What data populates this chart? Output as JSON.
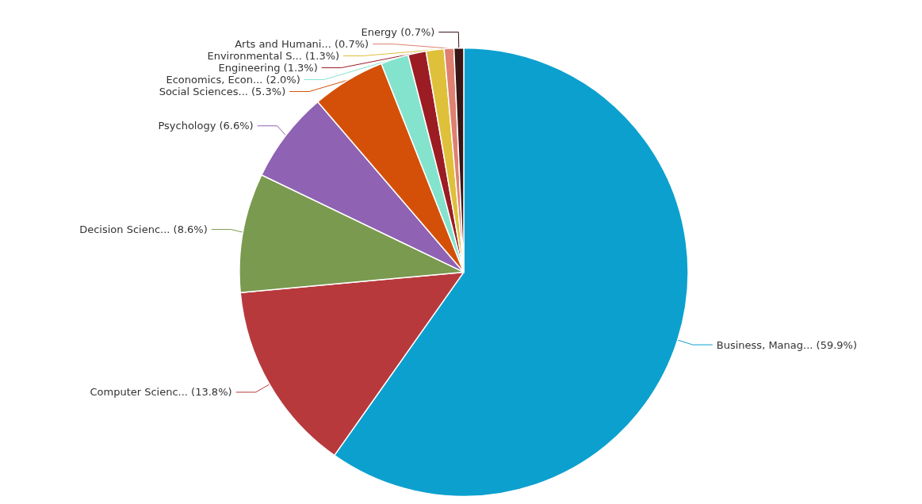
{
  "chart_data": {
    "type": "pie",
    "categories": [
      "Business, Manag...",
      "Computer Scienc...",
      "Decision Scienc...",
      "Psychology",
      "Social Sciences...",
      "Economics, Econ...",
      "Engineering",
      "Environmental S...",
      "Arts and Humani...",
      "Energy"
    ],
    "values": [
      59.9,
      13.8,
      8.6,
      6.6,
      5.3,
      2.0,
      1.3,
      1.3,
      0.7,
      0.7
    ],
    "value_labels": [
      "(59.9%)",
      "(13.8%)",
      "(8.6%)",
      "(6.6%)",
      "(5.3%)",
      "(2.0%)",
      "(1.3%)",
      "(1.3%)",
      "(0.7%)",
      "(0.7%)"
    ],
    "colors": [
      "#0ca0cf",
      "#b8393c",
      "#7a9a4f",
      "#8f62b3",
      "#d45009",
      "#84e3cd",
      "#9c1c24",
      "#dfc03a",
      "#e08070",
      "#3a1616"
    ],
    "legend": false
  }
}
